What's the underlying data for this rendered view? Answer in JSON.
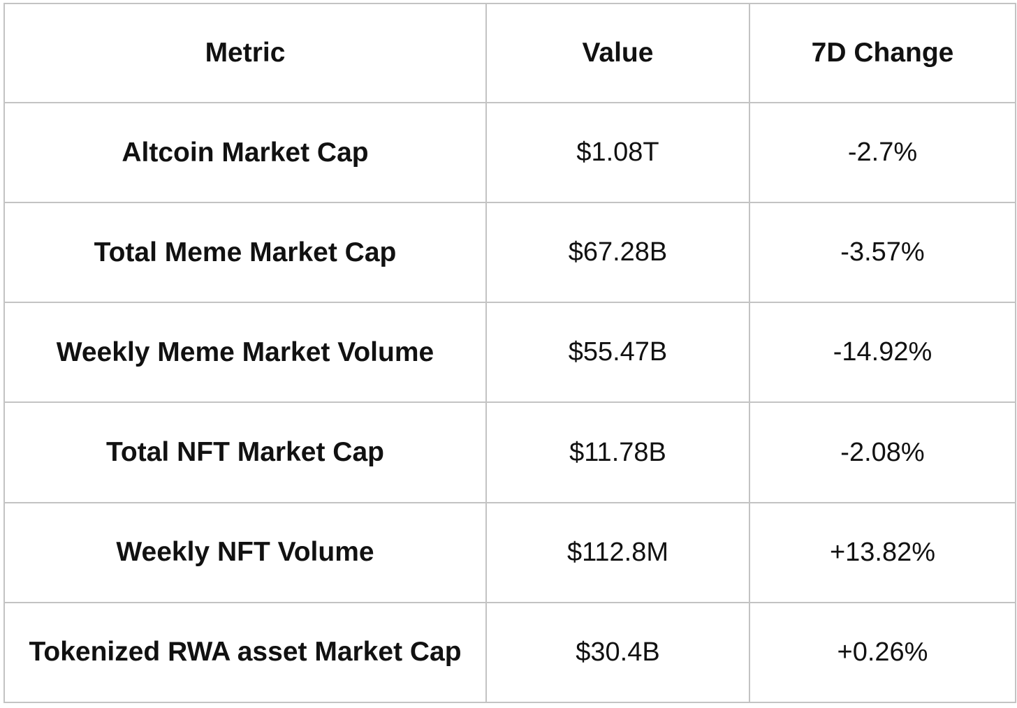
{
  "table": {
    "columns": [
      "Metric",
      "Value",
      "7D Change"
    ],
    "rows": [
      {
        "metric": "Altcoin Market Cap",
        "value": "$1.08T",
        "change": "-2.7%"
      },
      {
        "metric": "Total Meme Market Cap",
        "value": "$67.28B",
        "change": "-3.57%"
      },
      {
        "metric": "Weekly Meme Market Volume",
        "value": "$55.47B",
        "change": "-14.92%"
      },
      {
        "metric": "Total NFT Market Cap",
        "value": "$11.78B",
        "change": "-2.08%"
      },
      {
        "metric": "Weekly NFT Volume",
        "value": "$112.8M",
        "change": "+13.82%"
      },
      {
        "metric": "Tokenized RWA asset Market Cap",
        "value": "$30.4B",
        "change": "+0.26%"
      }
    ]
  },
  "colors": {
    "border": "#c3c3c3",
    "text": "#111111",
    "background": "#ffffff"
  },
  "chart_data": {
    "type": "table",
    "title": "",
    "columns": [
      "Metric",
      "Value",
      "7D Change"
    ],
    "rows": [
      [
        "Altcoin Market Cap",
        "$1.08T",
        "-2.7%"
      ],
      [
        "Total Meme Market Cap",
        "$67.28B",
        "-3.57%"
      ],
      [
        "Weekly Meme Market Volume",
        "$55.47B",
        "-14.92%"
      ],
      [
        "Total NFT Market Cap",
        "$11.78B",
        "-2.08%"
      ],
      [
        "Weekly NFT Volume",
        "$112.8M",
        "+13.82%"
      ],
      [
        "Tokenized RWA asset Market Cap",
        "$30.4B",
        "+0.26%"
      ]
    ]
  }
}
